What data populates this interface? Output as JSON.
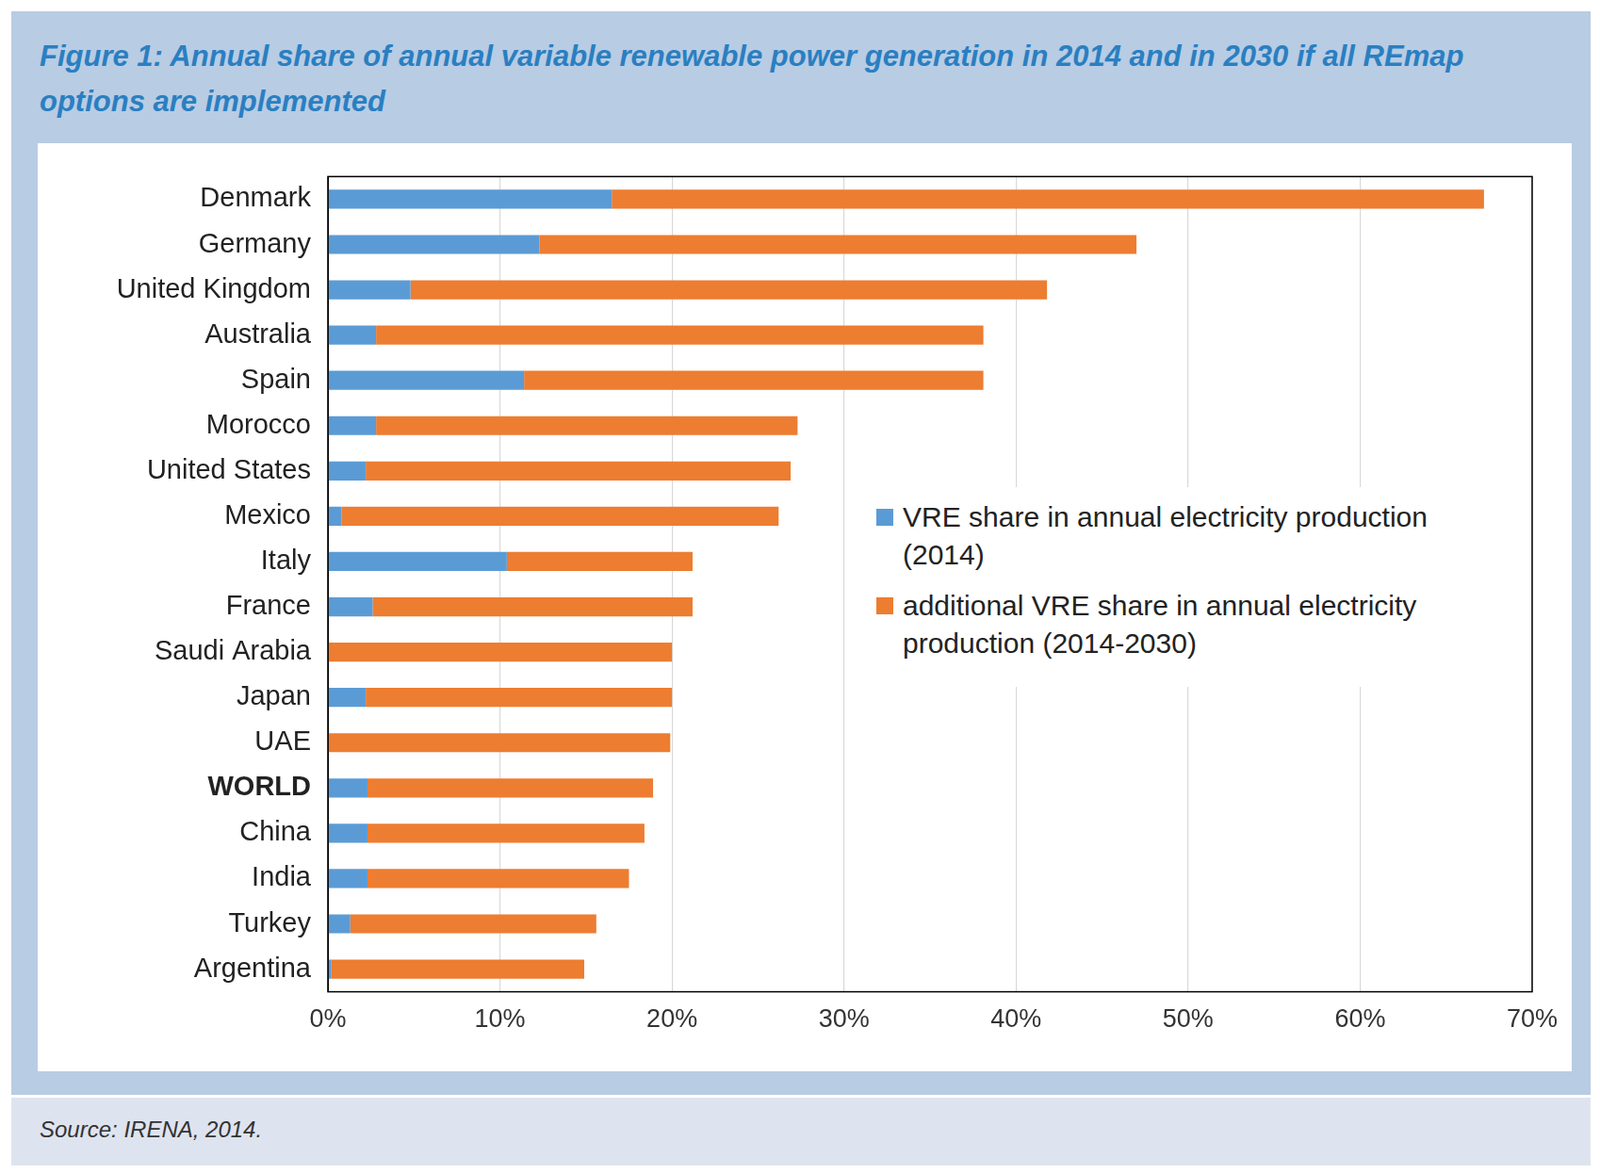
{
  "chart_data": {
    "type": "bar",
    "orientation": "horizontal",
    "stacked": true,
    "title": "Figure 1: Annual share of annual variable renewable power generation in 2014 and in 2030 if all REmap options are implemented",
    "source": "Source: IRENA, 2014.",
    "categories": [
      "Denmark",
      "Germany",
      "United Kingdom",
      "Australia",
      "Spain",
      "Morocco",
      "United States",
      "Mexico",
      "Italy",
      "France",
      "Saudi Arabia",
      "Japan",
      "UAE",
      "WORLD",
      "China",
      "India",
      "Turkey",
      "Argentina"
    ],
    "series": [
      {
        "name": "VRE share in annual electricity production (2014)",
        "color": "#5b9bd5",
        "values": [
          16.5,
          12.3,
          4.8,
          2.8,
          11.4,
          2.8,
          2.2,
          0.8,
          10.4,
          2.6,
          0,
          2.2,
          0,
          2.3,
          2.3,
          2.3,
          1.3,
          0.2
        ]
      },
      {
        "name": "additional VRE share in annual electricity production (2014-2030)",
        "color": "#ed7d31",
        "values": [
          50.7,
          34.7,
          37.0,
          35.3,
          26.7,
          24.5,
          24.7,
          25.4,
          10.8,
          18.6,
          20.0,
          17.8,
          19.9,
          16.6,
          16.1,
          15.2,
          14.3,
          14.7
        ]
      }
    ],
    "xlim": [
      0,
      70
    ],
    "xticks": [
      {
        "value": 0,
        "label": "0%"
      },
      {
        "value": 10,
        "label": "10%"
      },
      {
        "value": 20,
        "label": "20%"
      },
      {
        "value": 30,
        "label": "30%"
      },
      {
        "value": 40,
        "label": "40%"
      },
      {
        "value": 50,
        "label": "50%"
      },
      {
        "value": 60,
        "label": "60%"
      },
      {
        "value": 70,
        "label": "70%"
      }
    ],
    "grid": true,
    "legend": "right"
  }
}
